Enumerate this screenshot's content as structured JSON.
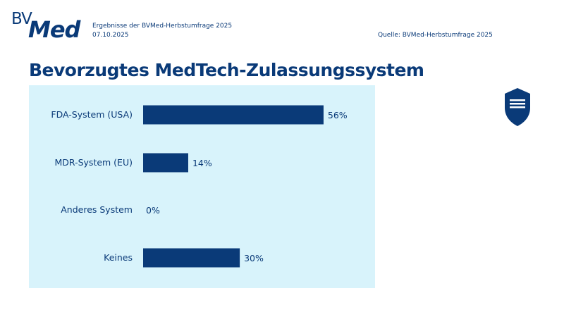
{
  "header": {
    "logo": "BVMed",
    "subtitle": "Ergebnisse der BVMed-Herbstumfrage 2025",
    "date": "07.10.2025",
    "source": "Quelle: BVMed-Herbstumfrage 2025"
  },
  "colors": {
    "bar": "#0a3a78",
    "panel": "#d8f3fb"
  },
  "icons": {
    "badge": "shield-icon"
  },
  "chart_data": {
    "type": "bar",
    "orientation": "horizontal",
    "title": "Bevorzugtes MedTech-Zulassungssystem",
    "categories": [
      "FDA-System (USA)",
      "MDR-System (EU)",
      "Anderes System",
      "Keines"
    ],
    "values": [
      56,
      14,
      0,
      30
    ],
    "value_labels": [
      "56%",
      "14%",
      "0%",
      "30%"
    ],
    "unit": "%",
    "xlim": [
      0,
      100
    ],
    "grid": false,
    "legend": "none"
  }
}
